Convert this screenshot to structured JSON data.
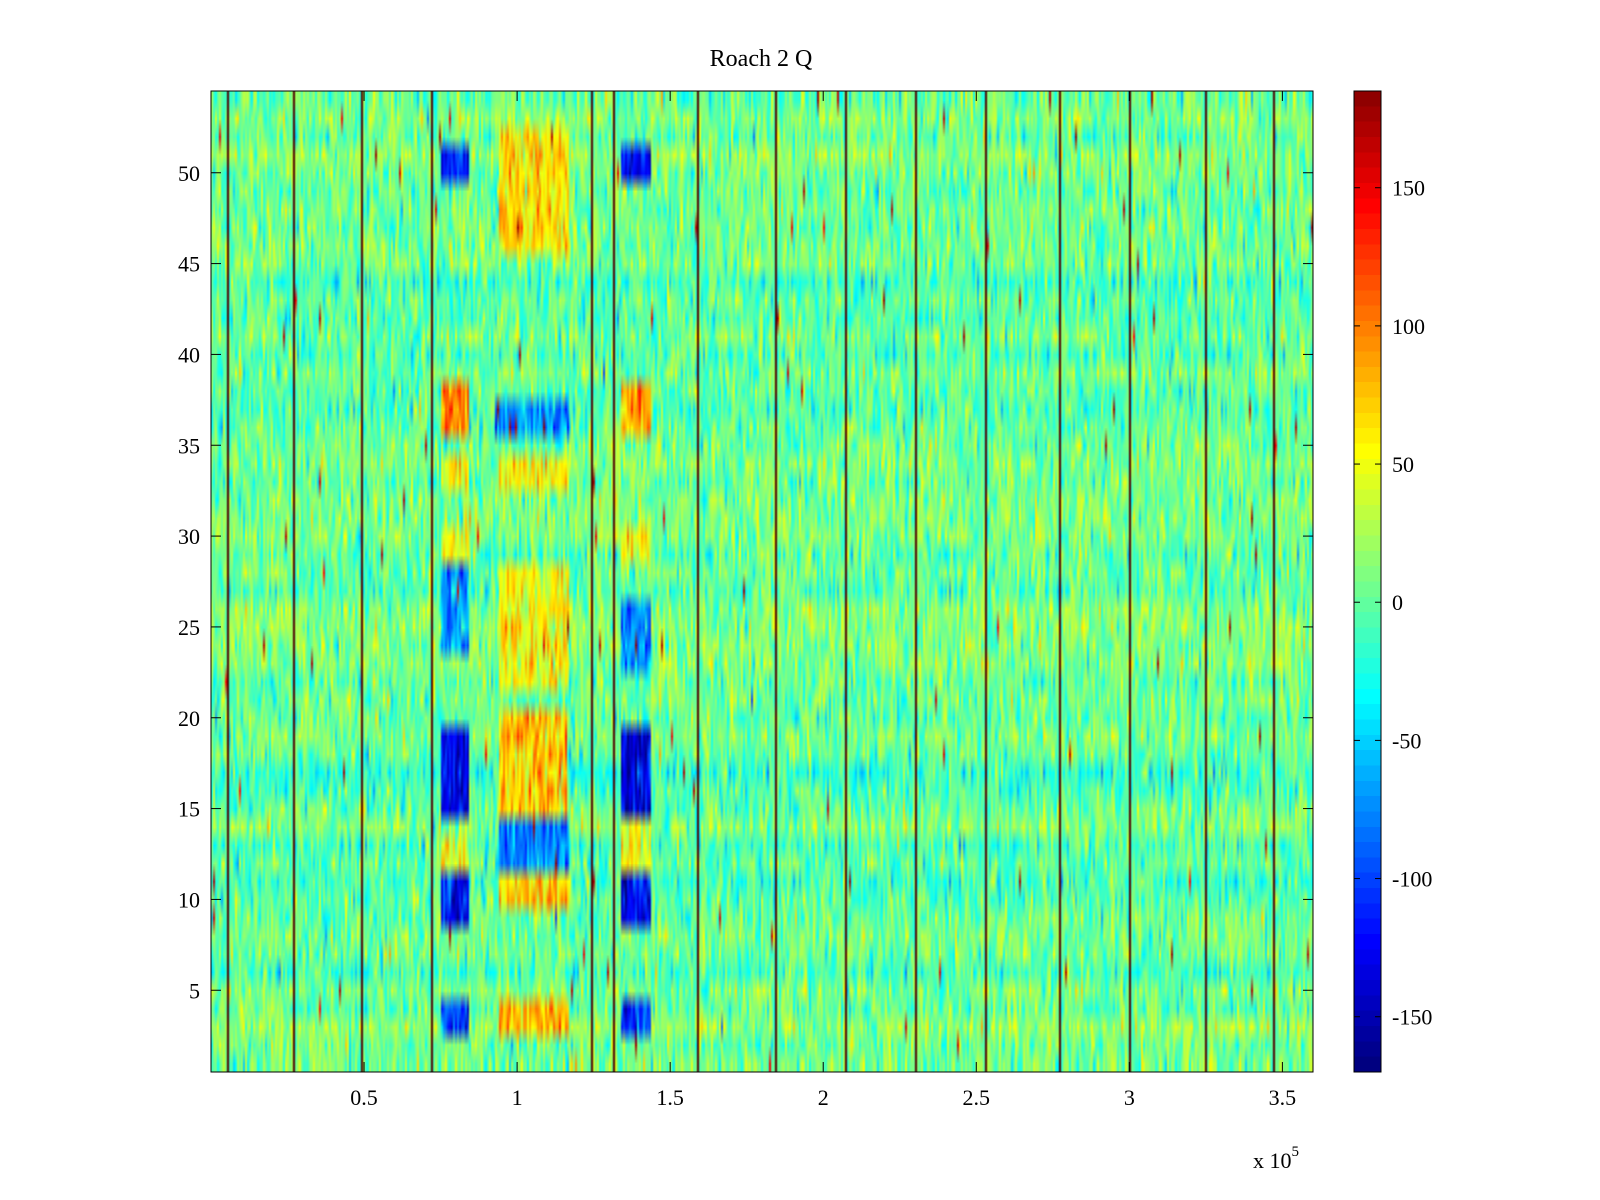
{
  "chart_data": {
    "type": "heatmap",
    "title": "Roach 2 Q",
    "xlabel": "",
    "ylabel": "",
    "x_exponent_label": "x 10",
    "x_exponent": "5",
    "xlim": [
      0,
      360000
    ],
    "ylim": [
      0.5,
      54.5
    ],
    "xticks": [
      50000,
      100000,
      150000,
      200000,
      250000,
      300000,
      350000
    ],
    "xtick_labels": [
      "0.5",
      "1",
      "1.5",
      "2",
      "2.5",
      "3",
      "3.5"
    ],
    "yticks": [
      5,
      10,
      15,
      20,
      25,
      30,
      35,
      40,
      45,
      50
    ],
    "ytick_labels": [
      "5",
      "10",
      "15",
      "20",
      "25",
      "30",
      "35",
      "40",
      "45",
      "50"
    ],
    "n_rows": 54,
    "colormap": "jet",
    "clim": [
      -170,
      185
    ],
    "colorbar_ticks": [
      150,
      100,
      50,
      0,
      -50,
      -100,
      -150
    ],
    "colorbar_tick_labels": [
      "150",
      "100",
      "50",
      "0",
      "-50",
      "-100",
      "-150"
    ],
    "background_value": 0,
    "dark_vertical_lines_x": [
      5000,
      27000,
      49000,
      72000,
      124000,
      131000,
      159000,
      184000,
      207000,
      230000,
      253000,
      277000,
      300000,
      325000,
      347000
    ],
    "features": [
      {
        "x_range": [
          75000,
          84000
        ],
        "rows": [
          50,
          51
        ],
        "value": -120
      },
      {
        "x_range": [
          134000,
          144000
        ],
        "rows": [
          50,
          51
        ],
        "value": -130
      },
      {
        "x_range": [
          94000,
          117000
        ],
        "rows": [
          46,
          52
        ],
        "value": 60
      },
      {
        "x_range": [
          75000,
          84000
        ],
        "rows": [
          36,
          38
        ],
        "value": 95
      },
      {
        "x_range": [
          93000,
          117000
        ],
        "rows": [
          36,
          37
        ],
        "value": -80
      },
      {
        "x_range": [
          134000,
          144000
        ],
        "rows": [
          36,
          38
        ],
        "value": 80
      },
      {
        "x_range": [
          75000,
          84000
        ],
        "rows": [
          33,
          34
        ],
        "value": 55
      },
      {
        "x_range": [
          94000,
          117000
        ],
        "rows": [
          33,
          34
        ],
        "value": 50
      },
      {
        "x_range": [
          75000,
          84000
        ],
        "rows": [
          29,
          30
        ],
        "value": 50
      },
      {
        "x_range": [
          134000,
          144000
        ],
        "rows": [
          29,
          30
        ],
        "value": 50
      },
      {
        "x_range": [
          94000,
          117000
        ],
        "rows": [
          22,
          28
        ],
        "value": 50
      },
      {
        "x_range": [
          75000,
          84000
        ],
        "rows": [
          24,
          28
        ],
        "value": -70
      },
      {
        "x_range": [
          134000,
          144000
        ],
        "rows": [
          23,
          26
        ],
        "value": -80
      },
      {
        "x_range": [
          75000,
          84000
        ],
        "rows": [
          15,
          19
        ],
        "value": -130
      },
      {
        "x_range": [
          134000,
          144000
        ],
        "rows": [
          15,
          19
        ],
        "value": -140
      },
      {
        "x_range": [
          94000,
          116000
        ],
        "rows": [
          15,
          20
        ],
        "value": 70
      },
      {
        "x_range": [
          75000,
          84000
        ],
        "rows": [
          12,
          13
        ],
        "value": 50
      },
      {
        "x_range": [
          134000,
          144000
        ],
        "rows": [
          11,
          14
        ],
        "value": 50
      },
      {
        "x_range": [
          94000,
          117000
        ],
        "rows": [
          12,
          14
        ],
        "value": -80
      },
      {
        "x_range": [
          75000,
          84000
        ],
        "rows": [
          9,
          11
        ],
        "value": -120
      },
      {
        "x_range": [
          134000,
          144000
        ],
        "rows": [
          9,
          11
        ],
        "value": -130
      },
      {
        "x_range": [
          94000,
          117000
        ],
        "rows": [
          10,
          11
        ],
        "value": 70
      },
      {
        "x_range": [
          75000,
          84000
        ],
        "rows": [
          3,
          4
        ],
        "value": -110
      },
      {
        "x_range": [
          134000,
          144000
        ],
        "rows": [
          3,
          4
        ],
        "value": -110
      },
      {
        "x_range": [
          94000,
          117000
        ],
        "rows": [
          3,
          4
        ],
        "value": 80
      }
    ]
  }
}
